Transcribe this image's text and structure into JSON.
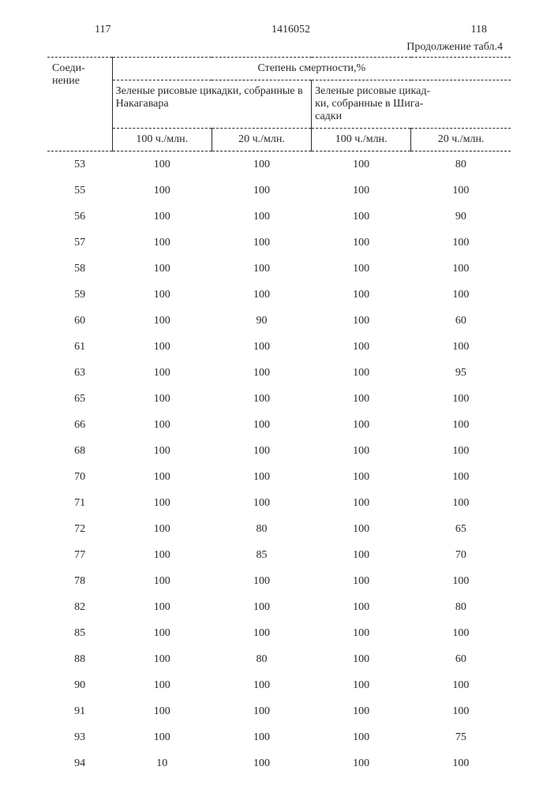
{
  "page_left_number": "117",
  "doc_number": "1416052",
  "page_right_number": "118",
  "continuation_label": "Продолжение табл.4",
  "header": {
    "compound_label": "Соеди-\nнение",
    "mortality_label": "Степень смертности,%",
    "group_a_label": "Зеленые рисовые цикадки, собранные в Накагавара",
    "group_b_label": "Зеленые рисовые цикад-\nки, собранные в Шига-\nсадки",
    "sub_a1": "100 ч./млн.",
    "sub_a2": "20 ч./млн.",
    "sub_b1": "100 ч./млн.",
    "sub_b2": "20 ч./млн."
  },
  "rows": [
    {
      "c": "53",
      "a1": "100",
      "a2": "100",
      "b1": "100",
      "b2": "80"
    },
    {
      "c": "55",
      "a1": "100",
      "a2": "100",
      "b1": "100",
      "b2": "100"
    },
    {
      "c": "56",
      "a1": "100",
      "a2": "100",
      "b1": "100",
      "b2": "90"
    },
    {
      "c": "57",
      "a1": "100",
      "a2": "100",
      "b1": "100",
      "b2": "100"
    },
    {
      "c": "58",
      "a1": "100",
      "a2": "100",
      "b1": "100",
      "b2": "100"
    },
    {
      "c": "59",
      "a1": "100",
      "a2": "100",
      "b1": "100",
      "b2": "100"
    },
    {
      "c": "60",
      "a1": "100",
      "a2": "90",
      "b1": "100",
      "b2": "60"
    },
    {
      "c": "61",
      "a1": "100",
      "a2": "100",
      "b1": "100",
      "b2": "100"
    },
    {
      "c": "63",
      "a1": "100",
      "a2": "100",
      "b1": "100",
      "b2": "95"
    },
    {
      "c": "65",
      "a1": "100",
      "a2": "100",
      "b1": "100",
      "b2": "100"
    },
    {
      "c": "66",
      "a1": "100",
      "a2": "100",
      "b1": "100",
      "b2": "100"
    },
    {
      "c": "68",
      "a1": "100",
      "a2": "100",
      "b1": "100",
      "b2": "100"
    },
    {
      "c": "70",
      "a1": "100",
      "a2": "100",
      "b1": "100",
      "b2": "100"
    },
    {
      "c": "71",
      "a1": "100",
      "a2": "100",
      "b1": "100",
      "b2": "100"
    },
    {
      "c": "72",
      "a1": "100",
      "a2": "80",
      "b1": "100",
      "b2": "65"
    },
    {
      "c": "77",
      "a1": "100",
      "a2": "85",
      "b1": "100",
      "b2": "70"
    },
    {
      "c": "78",
      "a1": "100",
      "a2": "100",
      "b1": "100",
      "b2": "100"
    },
    {
      "c": "82",
      "a1": "100",
      "a2": "100",
      "b1": "100",
      "b2": "80"
    },
    {
      "c": "85",
      "a1": "100",
      "a2": "100",
      "b1": "100",
      "b2": "100"
    },
    {
      "c": "88",
      "a1": "100",
      "a2": "80",
      "b1": "100",
      "b2": "60"
    },
    {
      "c": "90",
      "a1": "100",
      "a2": "100",
      "b1": "100",
      "b2": "100"
    },
    {
      "c": "91",
      "a1": "100",
      "a2": "100",
      "b1": "100",
      "b2": "100"
    },
    {
      "c": "93",
      "a1": "100",
      "a2": "100",
      "b1": "100",
      "b2": "75"
    },
    {
      "c": "94",
      "a1": "10",
      "a2": "100",
      "b1": "100",
      "b2": "100"
    }
  ],
  "style": {
    "font_family": "Times New Roman",
    "text_color": "#2a2a2a",
    "background_color": "#ffffff",
    "body_fontsize_pt": 11,
    "dash_border": "1px dashed #2a2a2a",
    "solid_border": "1px solid #2a2a2a"
  }
}
